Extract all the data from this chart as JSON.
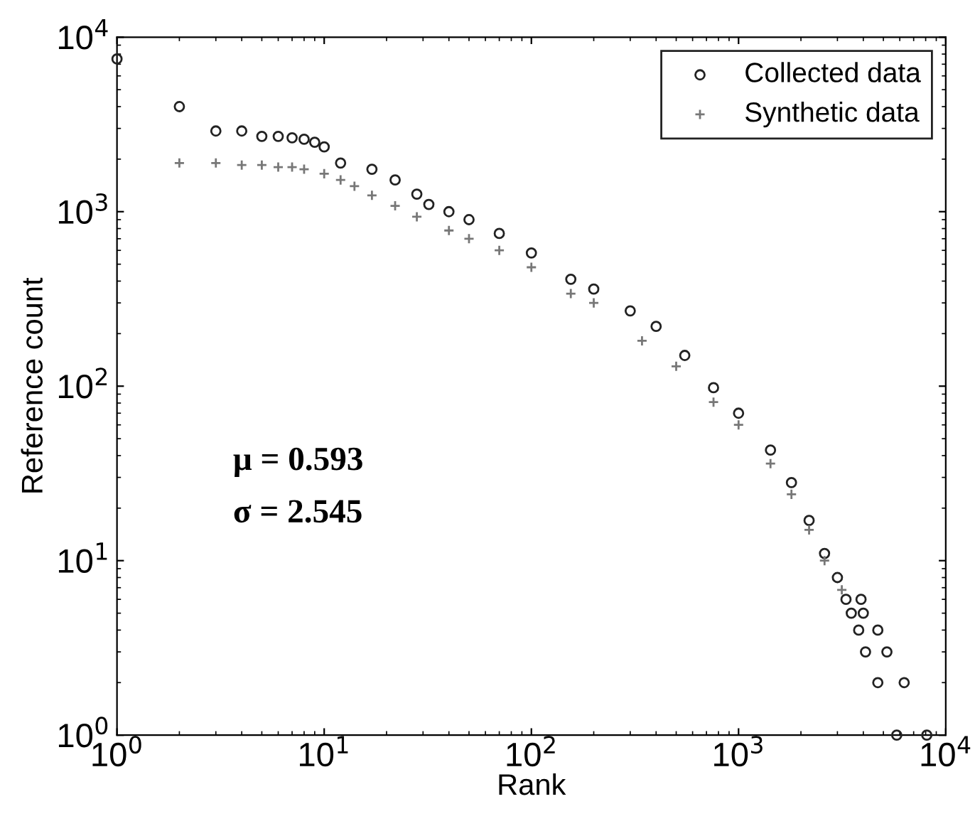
{
  "chart_data": {
    "type": "scatter",
    "xlabel": "Rank",
    "ylabel": "Reference count",
    "log": "xy",
    "xlim": [
      1,
      10000
    ],
    "ylim": [
      1,
      10000
    ],
    "xticks": [
      {
        "value": 1,
        "label": "10$^{0}$"
      },
      {
        "value": 10,
        "label": "10$^{1}$"
      },
      {
        "value": 100,
        "label": "10$^{2}$"
      },
      {
        "value": 1000,
        "label": "10$^{3}$"
      },
      {
        "value": 10000,
        "label": "10$^{4}$"
      }
    ],
    "yticks": [
      {
        "value": 1,
        "label": "10$^{0}$"
      },
      {
        "value": 10,
        "label": "10$^{1}$"
      },
      {
        "value": 100,
        "label": "10$^{2}$"
      },
      {
        "value": 1000,
        "label": "10$^{3}$"
      },
      {
        "value": 10000,
        "label": "10$^{4}$"
      }
    ],
    "legend": "top right",
    "grid": false,
    "annotations": [
      "μ = 0.593",
      "σ = 2.545"
    ],
    "series": [
      {
        "name": "Collected data",
        "color": "#222222",
        "marker": "circle",
        "x": [
          1,
          2,
          3,
          4,
          5,
          6,
          7,
          8,
          9,
          10,
          12,
          17,
          22,
          28,
          32,
          40,
          50,
          70,
          100,
          155,
          200,
          300,
          400,
          550,
          757,
          1000,
          1426,
          1800,
          2190,
          2600,
          3000,
          3300,
          3900,
          3500,
          4000,
          3800,
          4700,
          4100,
          5200,
          4700,
          6300,
          5800,
          8100
        ],
        "values": [
          7500,
          4000,
          2900,
          2900,
          2700,
          2700,
          2650,
          2600,
          2500,
          2350,
          1900,
          1750,
          1520,
          1260,
          1100,
          1000,
          900,
          750,
          580,
          410,
          360,
          270,
          220,
          150,
          98,
          70,
          43,
          28,
          17,
          11,
          8,
          6,
          6,
          5,
          5,
          4,
          4,
          3,
          3,
          2,
          2,
          1,
          1
        ]
      },
      {
        "name": "Synthetic data",
        "color": "#777777",
        "marker": "cross",
        "x": [
          2,
          3,
          4,
          5,
          6,
          7,
          8,
          10,
          12,
          14,
          17,
          22,
          28,
          40,
          50,
          70,
          100,
          155,
          200,
          342,
          500,
          757,
          1000,
          1426,
          1800,
          2190,
          2600,
          3150
        ],
        "values": [
          1900,
          1900,
          1850,
          1850,
          1800,
          1800,
          1750,
          1650,
          1520,
          1400,
          1240,
          1080,
          935,
          780,
          700,
          600,
          480,
          339,
          300,
          182,
          130,
          81,
          60,
          36,
          24,
          15,
          10,
          6.8
        ]
      }
    ]
  }
}
